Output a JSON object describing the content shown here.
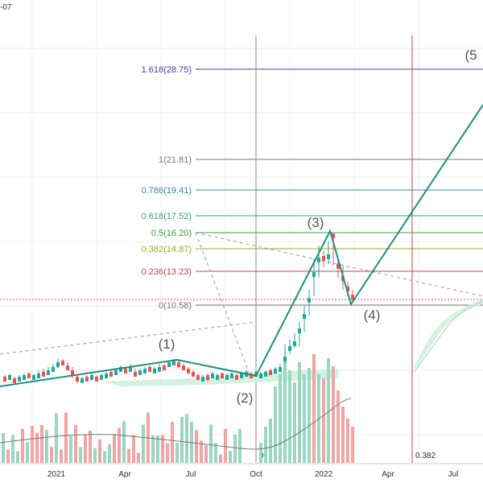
{
  "header": {
    "date_fragment": "-07"
  },
  "chart_data": {
    "type": "candlestick",
    "x_axis_labels": [
      "2021",
      "Apr",
      "Jul",
      "Oct",
      "2022",
      "Apr",
      "Jul"
    ],
    "fib_levels": [
      {
        "label": "1.618(28.75)",
        "value": 28.75,
        "color": "#3f3fa8"
      },
      {
        "label": "1(21.81)",
        "value": 21.81,
        "color": "#777777"
      },
      {
        "label": "0.786(19.41)",
        "value": 19.41,
        "color": "#3b86a6"
      },
      {
        "label": "0.618(17.52)",
        "value": 17.52,
        "color": "#2ea389"
      },
      {
        "label": "0.5(16.20)",
        "value": 16.2,
        "color": "#3b9d3b"
      },
      {
        "label": "0.382(14.87)",
        "value": 14.87,
        "color": "#8db526"
      },
      {
        "label": "0.236(13.23)",
        "value": 13.23,
        "color": "#b84848"
      },
      {
        "label": "0(10.58)",
        "value": 10.58,
        "color": "#777777"
      }
    ],
    "waves": [
      {
        "label": "(1)"
      },
      {
        "label": "(2)"
      },
      {
        "label": "(3)"
      },
      {
        "label": "(4)"
      },
      {
        "label": "(5"
      }
    ],
    "time_fib_labels": [
      "0",
      "0.382"
    ],
    "colors": {
      "up": "#26a69a",
      "down": "#ef5350",
      "wave_line": "#1f8f7f",
      "volume_up": "#9ad6c2",
      "volume_down": "#f1a5a5"
    }
  }
}
